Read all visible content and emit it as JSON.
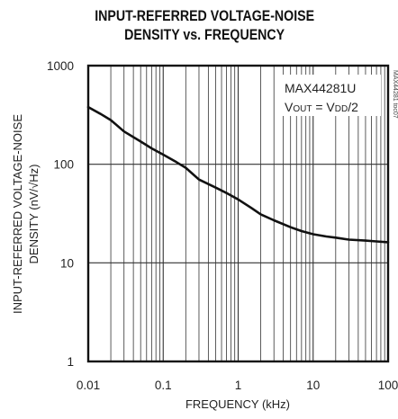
{
  "chart_data": {
    "type": "line",
    "title_lines": [
      "INPUT-REFERRED VOLTAGE-NOISE",
      "DENSITY vs. FREQUENCY"
    ],
    "xlabel": "FREQUENCY (kHz)",
    "ylabel_lines": [
      "INPUT-REFERRED VOLTAGE-NOISE",
      "DENSITY (nV/√Hz)"
    ],
    "x_scale": "log",
    "y_scale": "log",
    "xlim": [
      0.01,
      100
    ],
    "ylim": [
      1,
      1000
    ],
    "x_ticks": [
      {
        "value": 0.01,
        "label": "0.01"
      },
      {
        "value": 0.1,
        "label": "0.1"
      },
      {
        "value": 1,
        "label": "1"
      },
      {
        "value": 10,
        "label": "10"
      },
      {
        "value": 100,
        "label": "100"
      }
    ],
    "y_ticks": [
      {
        "value": 1,
        "label": "1"
      },
      {
        "value": 10,
        "label": "10"
      },
      {
        "value": 100,
        "label": "100"
      },
      {
        "value": 1000,
        "label": "1000"
      }
    ],
    "grid": true,
    "annotations": [
      "MAX44281U",
      "V₀UT = VDD/2"
    ],
    "annotation_part": "MAX44281U",
    "annotation_cond": {
      "v1": "V",
      "s1": "OUT",
      "eq": " = V",
      "s2": "DD",
      "tail": "/2"
    },
    "side_tag": "MAX44281 toc07",
    "series": [
      {
        "x": [
          0.01,
          0.015,
          0.02,
          0.03,
          0.05,
          0.07,
          0.1,
          0.15,
          0.2,
          0.3,
          0.5,
          0.7,
          1,
          1.5,
          2,
          3,
          5,
          7,
          10,
          15,
          20,
          30,
          50,
          70,
          100
        ],
        "y": [
          380,
          320,
          280,
          215,
          170,
          145,
          125,
          105,
          92,
          70,
          58,
          51,
          44,
          36,
          31,
          27,
          23,
          21,
          19.5,
          18.5,
          18,
          17.2,
          16.8,
          16.5,
          16.2
        ]
      }
    ]
  }
}
